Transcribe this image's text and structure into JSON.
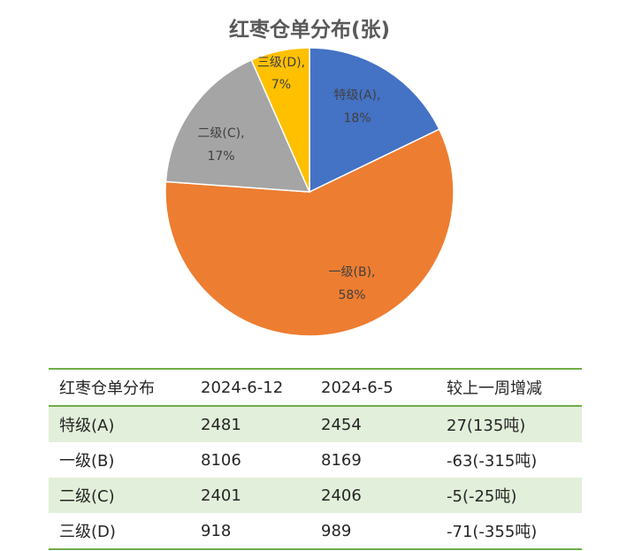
{
  "chart_data": {
    "type": "pie",
    "title": "红枣仓单分布(张)",
    "slices": [
      {
        "name": "特级(A)",
        "percent_label": "18%",
        "value": 2481,
        "color": "#4472c4"
      },
      {
        "name": "一级(B)",
        "percent_label": "58%",
        "value": 8106,
        "color": "#ed7d31"
      },
      {
        "name": "二级(C)",
        "percent_label": "17%",
        "value": 2401,
        "color": "#a5a5a5"
      },
      {
        "name": "三级(D)",
        "percent_label": "7%",
        "value": 918,
        "color": "#ffc000"
      }
    ]
  },
  "table": {
    "headers": [
      "红枣仓单分布",
      "2024-6-12",
      "2024-6-5",
      "较上一周增减"
    ],
    "rows": [
      [
        "特级(A)",
        "2481",
        "2454",
        "27(135吨)"
      ],
      [
        "一级(B)",
        "8106",
        "8169",
        "-63(-315吨)"
      ],
      [
        "二级(C)",
        "2401",
        "2406",
        "-5(-25吨)"
      ],
      [
        "三级(D)",
        "918",
        "989",
        "-71(-355吨)"
      ]
    ],
    "accent_color": "#70ad47",
    "stripe_color": "#e2efda"
  }
}
